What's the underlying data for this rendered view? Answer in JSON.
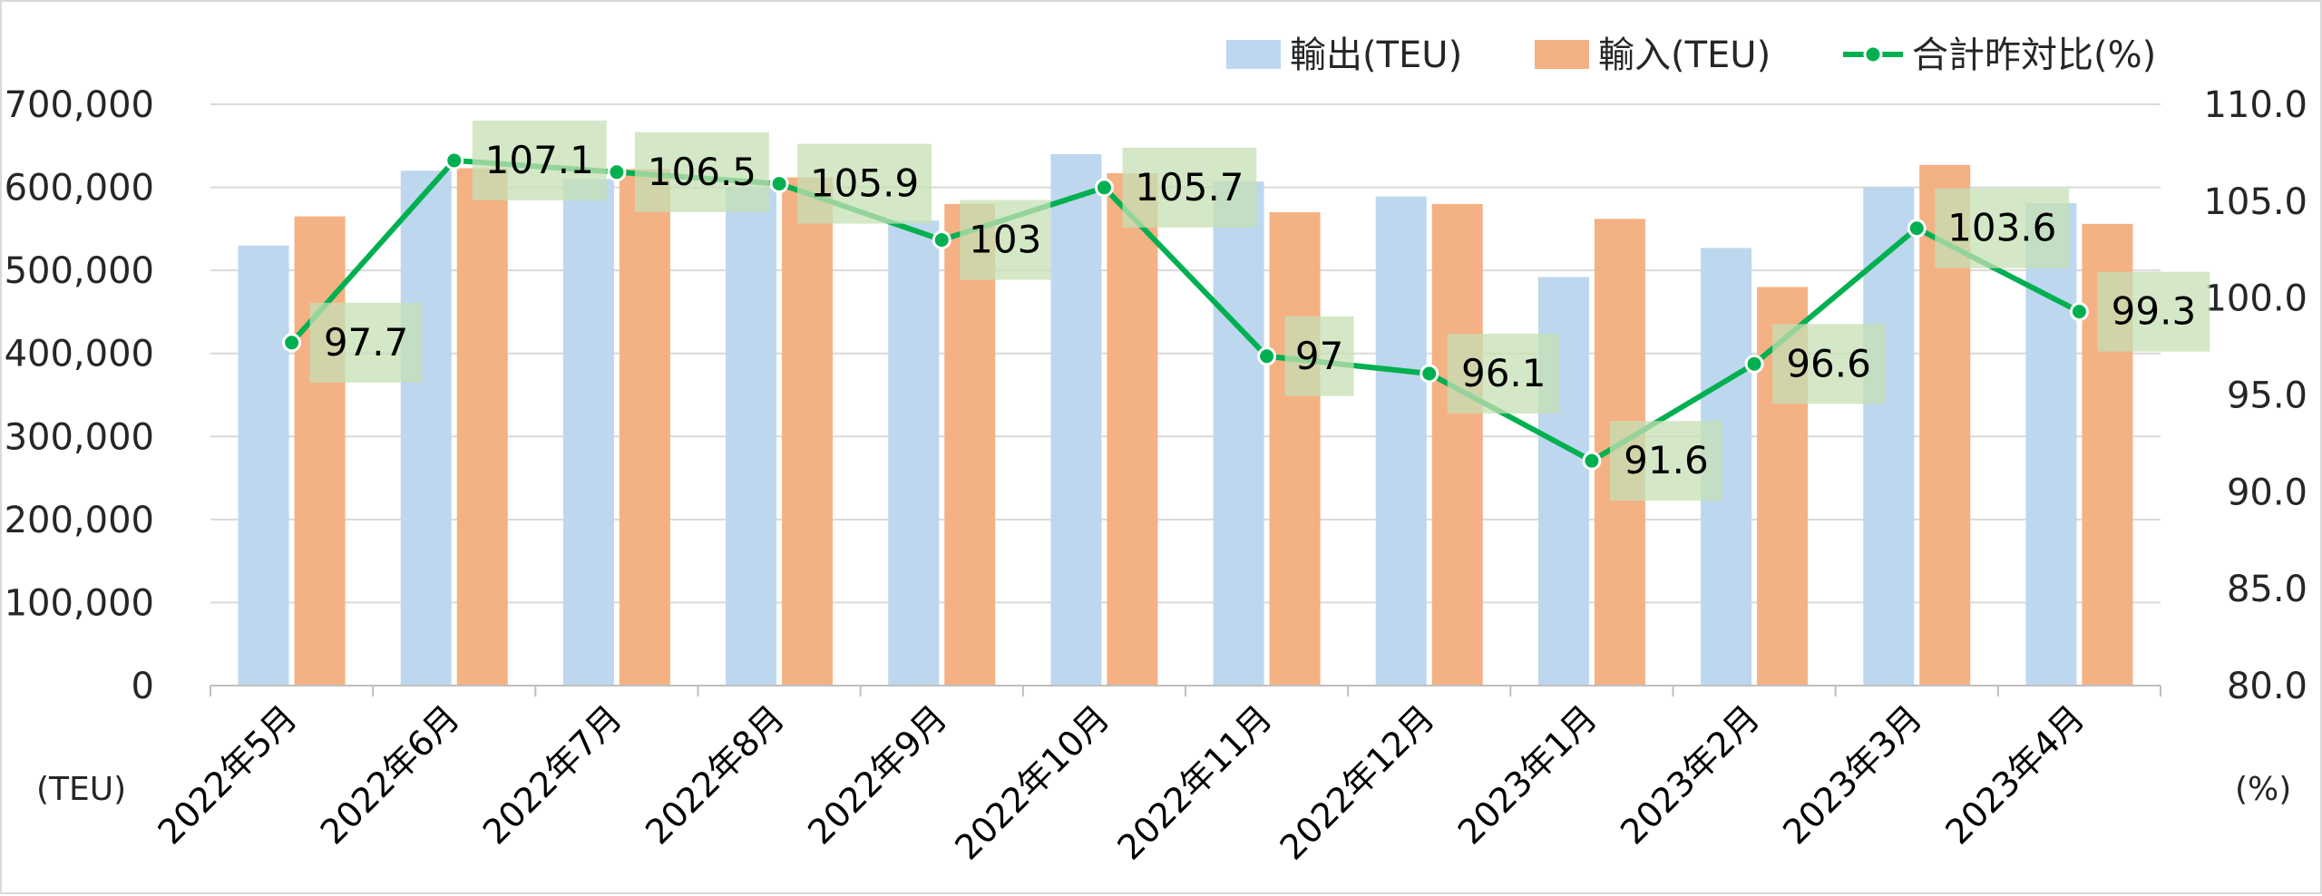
{
  "chart_data": {
    "type": "bar",
    "categories": [
      "2022年5月",
      "2022年6月",
      "2022年7月",
      "2022年8月",
      "2022年9月",
      "2022年10月",
      "2022年11月",
      "2022年12月",
      "2023年1月",
      "2023年2月",
      "2023年3月",
      "2023年4月"
    ],
    "series": [
      {
        "name": "輸出(TEU)",
        "type": "bar",
        "axis": "left",
        "color": "#bdd7ee",
        "values": [
          530000,
          620000,
          610000,
          600000,
          560000,
          640000,
          607000,
          589000,
          492000,
          527000,
          600000,
          581000
        ]
      },
      {
        "name": "輸入(TEU)",
        "type": "bar",
        "axis": "left",
        "color": "#f4b183",
        "values": [
          565000,
          623000,
          622000,
          612000,
          580000,
          617000,
          570000,
          580000,
          562000,
          480000,
          627000,
          556000
        ]
      },
      {
        "name": "合計昨対比(%)",
        "type": "line",
        "axis": "right",
        "color": "#00b050",
        "values": [
          97.7,
          107.1,
          106.5,
          105.9,
          103,
          105.7,
          97,
          96.1,
          91.6,
          96.6,
          103.6,
          99.3
        ],
        "labels": [
          "97.7",
          "107.1",
          "106.5",
          "105.9",
          "103",
          "105.7",
          "97",
          "96.1",
          "91.6",
          "96.6",
          "103.6",
          "99.3"
        ]
      }
    ],
    "y_left": {
      "min": 0,
      "max": 700000,
      "step": 100000,
      "tick_labels": [
        "0",
        "100,000",
        "200,000",
        "300,000",
        "400,000",
        "500,000",
        "600,000",
        "700,000"
      ],
      "unit_label": "(TEU)"
    },
    "y_right": {
      "min": 80,
      "max": 110,
      "step": 5,
      "tick_labels": [
        "80.0",
        "85.0",
        "90.0",
        "95.0",
        "100.0",
        "105.0",
        "110.0"
      ],
      "unit_label": "(%)"
    },
    "grid": true,
    "legend_position": "top-right",
    "data_label_background": "#c6e0b4"
  }
}
